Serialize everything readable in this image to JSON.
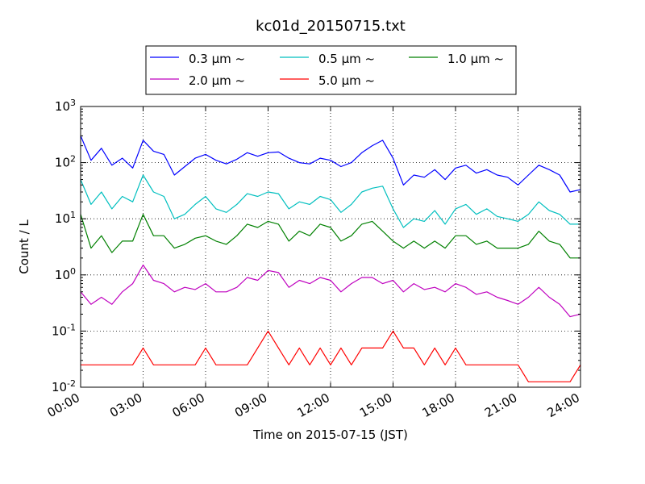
{
  "chart_data": {
    "type": "line",
    "title": "kc01d_20150715.txt",
    "xlabel": "Time on 2015-07-15 (JST)",
    "ylabel": "Count / L",
    "y_scale": "log",
    "xlim": [
      0,
      24
    ],
    "ylim": [
      0.01,
      1000
    ],
    "grid": true,
    "legend_position": "top-center",
    "x_ticks": [
      {
        "value": 0,
        "label": "00:00"
      },
      {
        "value": 3,
        "label": "03:00"
      },
      {
        "value": 6,
        "label": "06:00"
      },
      {
        "value": 9,
        "label": "09:00"
      },
      {
        "value": 12,
        "label": "12:00"
      },
      {
        "value": 15,
        "label": "15:00"
      },
      {
        "value": 18,
        "label": "18:00"
      },
      {
        "value": 21,
        "label": "21:00"
      },
      {
        "value": 24,
        "label": "24:00"
      }
    ],
    "y_ticks": [
      {
        "value": 0.01,
        "base": "10",
        "exp": "-2"
      },
      {
        "value": 0.1,
        "base": "10",
        "exp": "-1"
      },
      {
        "value": 1,
        "base": "10",
        "exp": "0"
      },
      {
        "value": 10,
        "base": "10",
        "exp": "1"
      },
      {
        "value": 100,
        "base": "10",
        "exp": "2"
      },
      {
        "value": 1000,
        "base": "10",
        "exp": "3"
      }
    ],
    "series": [
      {
        "name": "0.3 µm ~",
        "size": "0.3",
        "color": "#0000ff",
        "x": [
          0,
          0.5,
          1,
          1.5,
          2,
          2.5,
          3,
          3.5,
          4,
          4.5,
          5,
          5.5,
          6,
          6.5,
          7,
          7.5,
          8,
          8.5,
          9,
          9.5,
          10,
          10.5,
          11,
          11.5,
          12,
          12.5,
          13,
          13.5,
          14,
          14.5,
          15,
          15.5,
          16,
          16.5,
          17,
          17.5,
          18,
          18.5,
          19,
          19.5,
          20,
          20.5,
          21,
          21.5,
          22,
          22.5,
          23,
          23.5,
          24
        ],
        "y": [
          300,
          110,
          180,
          90,
          120,
          80,
          250,
          160,
          140,
          60,
          85,
          120,
          140,
          110,
          95,
          115,
          150,
          130,
          150,
          155,
          120,
          100,
          95,
          120,
          110,
          85,
          100,
          150,
          200,
          250,
          120,
          40,
          60,
          55,
          75,
          50,
          80,
          90,
          65,
          75,
          60,
          55,
          40,
          60,
          90,
          75,
          60,
          30,
          33
        ]
      },
      {
        "name": "0.5 µm ~",
        "size": "0.5",
        "color": "#00bfbf",
        "x": [
          0,
          0.5,
          1,
          1.5,
          2,
          2.5,
          3,
          3.5,
          4,
          4.5,
          5,
          5.5,
          6,
          6.5,
          7,
          7.5,
          8,
          8.5,
          9,
          9.5,
          10,
          10.5,
          11,
          11.5,
          12,
          12.5,
          13,
          13.5,
          14,
          14.5,
          15,
          15.5,
          16,
          16.5,
          17,
          17.5,
          18,
          18.5,
          19,
          19.5,
          20,
          20.5,
          21,
          21.5,
          22,
          22.5,
          23,
          23.5,
          24
        ],
        "y": [
          50,
          18,
          30,
          15,
          25,
          20,
          60,
          30,
          25,
          10,
          12,
          18,
          25,
          15,
          13,
          18,
          28,
          25,
          30,
          28,
          15,
          20,
          18,
          25,
          22,
          13,
          18,
          30,
          35,
          38,
          15,
          7,
          10,
          9,
          14,
          8,
          15,
          18,
          12,
          15,
          11,
          10,
          9,
          12,
          20,
          14,
          12,
          8,
          8
        ]
      },
      {
        "name": "1.0 µm ~",
        "size": "1.0",
        "color": "#008000",
        "x": [
          0,
          0.5,
          1,
          1.5,
          2,
          2.5,
          3,
          3.5,
          4,
          4.5,
          5,
          5.5,
          6,
          6.5,
          7,
          7.5,
          8,
          8.5,
          9,
          9.5,
          10,
          10.5,
          11,
          11.5,
          12,
          12.5,
          13,
          13.5,
          14,
          14.5,
          15,
          15.5,
          16,
          16.5,
          17,
          17.5,
          18,
          18.5,
          19,
          19.5,
          20,
          20.5,
          21,
          21.5,
          22,
          22.5,
          23,
          23.5,
          24
        ],
        "y": [
          12,
          3,
          5,
          2.5,
          4,
          4,
          12,
          5,
          5,
          3,
          3.5,
          4.5,
          5,
          4,
          3.5,
          5,
          8,
          7,
          9,
          8,
          4,
          6,
          5,
          8,
          7,
          4,
          5,
          8,
          9,
          6,
          4,
          3,
          4,
          3,
          4,
          3,
          5,
          5,
          3.5,
          4,
          3,
          3,
          3,
          3.5,
          6,
          4,
          3.5,
          2,
          2
        ]
      },
      {
        "name": "2.0 µm ~",
        "size": "2.0",
        "color": "#bf00bf",
        "x": [
          0,
          0.5,
          1,
          1.5,
          2,
          2.5,
          3,
          3.5,
          4,
          4.5,
          5,
          5.5,
          6,
          6.5,
          7,
          7.5,
          8,
          8.5,
          9,
          9.5,
          10,
          10.5,
          11,
          11.5,
          12,
          12.5,
          13,
          13.5,
          14,
          14.5,
          15,
          15.5,
          16,
          16.5,
          17,
          17.5,
          18,
          18.5,
          19,
          19.5,
          20,
          20.5,
          21,
          21.5,
          22,
          22.5,
          23,
          23.5,
          24
        ],
        "y": [
          0.5,
          0.3,
          0.4,
          0.3,
          0.5,
          0.7,
          1.5,
          0.8,
          0.7,
          0.5,
          0.6,
          0.55,
          0.7,
          0.5,
          0.5,
          0.6,
          0.9,
          0.8,
          1.2,
          1.1,
          0.6,
          0.8,
          0.7,
          0.9,
          0.8,
          0.5,
          0.7,
          0.9,
          0.9,
          0.7,
          0.8,
          0.5,
          0.7,
          0.55,
          0.6,
          0.5,
          0.7,
          0.6,
          0.45,
          0.5,
          0.4,
          0.35,
          0.3,
          0.4,
          0.6,
          0.4,
          0.3,
          0.18,
          0.2
        ]
      },
      {
        "name": "5.0 µm ~",
        "size": "5.0",
        "color": "#ff0000",
        "x": [
          0,
          0.5,
          1,
          1.5,
          2,
          2.5,
          3,
          3.5,
          4,
          4.5,
          5,
          5.5,
          6,
          6.5,
          7,
          7.5,
          8,
          8.5,
          9,
          9.5,
          10,
          10.5,
          11,
          11.5,
          12,
          12.5,
          13,
          13.5,
          14,
          14.5,
          15,
          15.5,
          16,
          16.5,
          17,
          17.5,
          18,
          18.5,
          19,
          19.5,
          20,
          20.5,
          21,
          21.5,
          22,
          22.5,
          23,
          23.5,
          24
        ],
        "y": [
          0.025,
          0.025,
          0.025,
          0.025,
          0.025,
          0.025,
          0.05,
          0.025,
          0.025,
          0.025,
          0.025,
          0.025,
          0.05,
          0.025,
          0.025,
          0.025,
          0.025,
          0.05,
          0.1,
          0.05,
          0.025,
          0.05,
          0.025,
          0.05,
          0.025,
          0.05,
          0.025,
          0.05,
          0.05,
          0.05,
          0.1,
          0.05,
          0.05,
          0.025,
          0.05,
          0.025,
          0.05,
          0.025,
          0.025,
          0.025,
          0.025,
          0.025,
          0.025,
          0.0125,
          0.0125,
          0.0125,
          0.0125,
          0.0125,
          0.025
        ]
      }
    ]
  }
}
